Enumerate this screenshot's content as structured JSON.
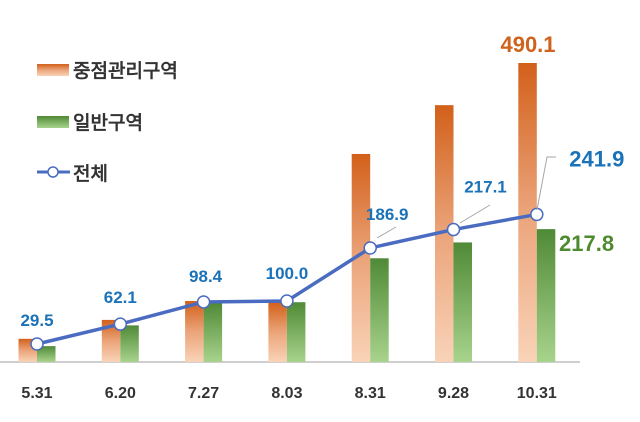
{
  "chart_data": {
    "type": "bar",
    "title": "",
    "xlabel": "",
    "ylabel": "",
    "categories": [
      "5.31",
      "6.20",
      "7.27",
      "8.03",
      "8.31",
      "9.28",
      "10.31"
    ],
    "series": [
      {
        "name": "중점관리구역",
        "type": "bar",
        "color": "#d2601a",
        "values": [
          38,
          69,
          100,
          98,
          341,
          421,
          490.1
        ]
      },
      {
        "name": "일반구역",
        "type": "bar",
        "color": "#5a9a3c",
        "values": [
          26,
          60,
          97,
          98,
          170,
          196,
          217.8
        ]
      },
      {
        "name": "전체",
        "type": "line",
        "color": "#4a6cc0",
        "values": [
          29.5,
          62.1,
          98.4,
          100.0,
          186.9,
          217.1,
          241.9
        ]
      }
    ],
    "data_labels": {
      "total": [
        "29.5",
        "62.1",
        "98.4",
        "100.0",
        "186.9",
        "217.1",
        "241.9"
      ],
      "focus_last": "490.1",
      "general_last": "217.8"
    },
    "ylim": [
      0,
      520
    ],
    "grid": false,
    "y_axis_visible": false,
    "legend_placement": "top-left",
    "label_colors": {
      "total": "#1a72b8",
      "focus": "#cf621c",
      "general": "#4e8a2e"
    }
  }
}
